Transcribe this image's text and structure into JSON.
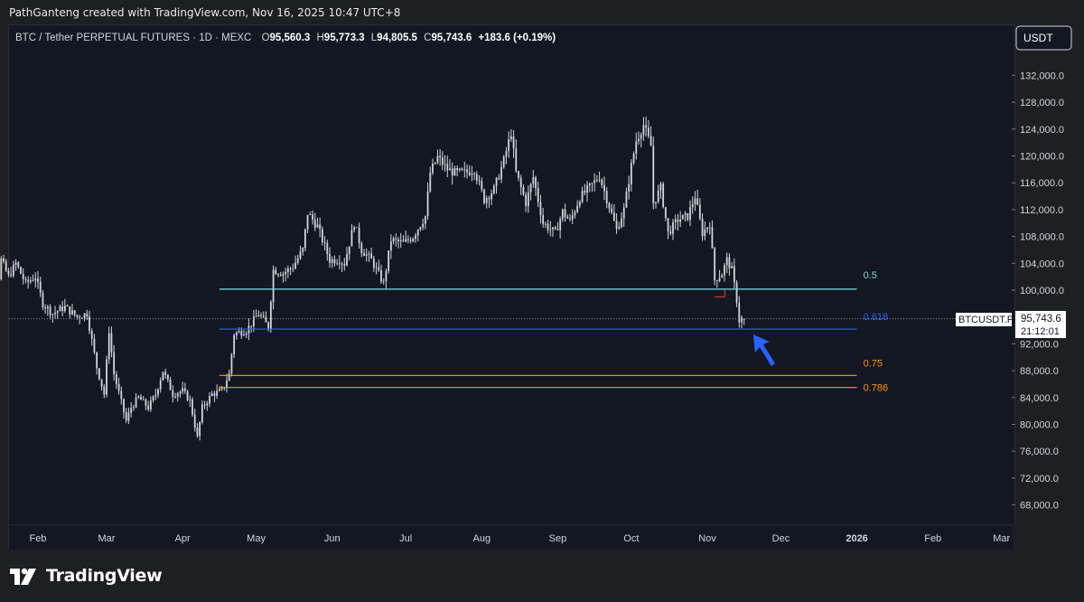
{
  "attribution": "PathGanteng created with TradingView.com, Nov 16, 2025 10:47 UTC+8",
  "brand": {
    "name": "TradingView",
    "logo_icon": "tradingview-logo-icon"
  },
  "colors": {
    "background": "#131722",
    "candle": "#d1d4dc",
    "fib_05": "#7fdbe6",
    "fib_0618": "#2962ff",
    "fib_075": "#ff9800",
    "fib_0786": "#ff9800",
    "arrow": "#2962ff",
    "marker": "#f23645"
  },
  "chart_data": {
    "type": "candlestick",
    "symbol_line": {
      "symbol": "BTC / Tether PERPETUAL FUTURES · 1D · MEXC",
      "open_label": "O",
      "open": "95,560.3",
      "high_label": "H",
      "high": "95,773.3",
      "low_label": "L",
      "low": "94,805.5",
      "close_label": "C",
      "close": "95,743.6",
      "change": "+183.6 (+0.19%)"
    },
    "currency": "USDT",
    "price_axis_ticks": [
      "132,000.0",
      "128,000.0",
      "124,000.0",
      "120,000.0",
      "116,000.0",
      "112,000.0",
      "108,000.0",
      "104,000.0",
      "100,000.0",
      "92,000.0",
      "88,000.0",
      "84,000.0",
      "80,000.0",
      "76,000.0",
      "72,000.0",
      "68,000.0"
    ],
    "price_tick_values": [
      132000,
      128000,
      124000,
      120000,
      116000,
      112000,
      108000,
      104000,
      100000,
      92000,
      88000,
      84000,
      80000,
      76000,
      72000,
      68000
    ],
    "time_axis_ticks": [
      "Feb",
      "Mar",
      "Apr",
      "May",
      "Jun",
      "Jul",
      "Aug",
      "Sep",
      "Oct",
      "Nov",
      "Dec",
      "2026",
      "Feb",
      "Mar"
    ],
    "last_price": {
      "symbol": "BTCUSDT.P",
      "value": "95,743.6",
      "countdown": "21:12:01",
      "price": 95743.6
    },
    "fib_levels": [
      {
        "label": "0.5",
        "price": 100150
      },
      {
        "label": "0.618",
        "price": 94200
      },
      {
        "label": "0.75",
        "price": 87300
      },
      {
        "label": "0.786",
        "price": 85500
      }
    ],
    "fib_start": "2025-04-16",
    "fib_end": "2026-01-01",
    "marker": {
      "date_from": "2025-11-04",
      "date_to": "2025-11-07",
      "price": 99000
    },
    "arrow": {
      "date": "2025-11-19",
      "price": 93000
    },
    "series": [
      {
        "d": "2025-01-07",
        "c": 102000
      },
      {
        "d": "2025-01-10",
        "c": 95000
      },
      {
        "d": "2025-01-13",
        "c": 94500
      },
      {
        "d": "2025-01-17",
        "c": 104500
      },
      {
        "d": "2025-01-20",
        "c": 102000
      },
      {
        "d": "2025-01-23",
        "c": 104000
      },
      {
        "d": "2025-01-27",
        "c": 101000
      },
      {
        "d": "2025-01-31",
        "c": 102000
      },
      {
        "d": "2025-02-03",
        "c": 98000
      },
      {
        "d": "2025-02-07",
        "c": 96500
      },
      {
        "d": "2025-02-12",
        "c": 97500
      },
      {
        "d": "2025-02-17",
        "c": 96000
      },
      {
        "d": "2025-02-21",
        "c": 96500
      },
      {
        "d": "2025-02-25",
        "c": 88500
      },
      {
        "d": "2025-02-28",
        "c": 84500
      },
      {
        "d": "2025-03-02",
        "c": 94000
      },
      {
        "d": "2025-03-04",
        "c": 87500
      },
      {
        "d": "2025-03-09",
        "c": 80500
      },
      {
        "d": "2025-03-11",
        "c": 82500
      },
      {
        "d": "2025-03-14",
        "c": 84000
      },
      {
        "d": "2025-03-18",
        "c": 82500
      },
      {
        "d": "2025-03-21",
        "c": 84500
      },
      {
        "d": "2025-03-24",
        "c": 88000
      },
      {
        "d": "2025-03-28",
        "c": 84500
      },
      {
        "d": "2025-04-01",
        "c": 85000
      },
      {
        "d": "2025-04-04",
        "c": 83500
      },
      {
        "d": "2025-04-07",
        "c": 78000
      },
      {
        "d": "2025-04-09",
        "c": 82500
      },
      {
        "d": "2025-04-13",
        "c": 84500
      },
      {
        "d": "2025-04-17",
        "c": 85000
      },
      {
        "d": "2025-04-20",
        "c": 87500
      },
      {
        "d": "2025-04-22",
        "c": 93500
      },
      {
        "d": "2025-04-27",
        "c": 94000
      },
      {
        "d": "2025-05-02",
        "c": 96500
      },
      {
        "d": "2025-05-06",
        "c": 94500
      },
      {
        "d": "2025-05-08",
        "c": 103000
      },
      {
        "d": "2025-05-12",
        "c": 102500
      },
      {
        "d": "2025-05-16",
        "c": 103500
      },
      {
        "d": "2025-05-20",
        "c": 106000
      },
      {
        "d": "2025-05-22",
        "c": 111500
      },
      {
        "d": "2025-05-26",
        "c": 109500
      },
      {
        "d": "2025-05-31",
        "c": 104500
      },
      {
        "d": "2025-06-04",
        "c": 104500
      },
      {
        "d": "2025-06-06",
        "c": 104000
      },
      {
        "d": "2025-06-10",
        "c": 110000
      },
      {
        "d": "2025-06-13",
        "c": 106000
      },
      {
        "d": "2025-06-17",
        "c": 104500
      },
      {
        "d": "2025-06-22",
        "c": 101000
      },
      {
        "d": "2025-06-25",
        "c": 107500
      },
      {
        "d": "2025-06-30",
        "c": 107000
      },
      {
        "d": "2025-07-04",
        "c": 108000
      },
      {
        "d": "2025-07-09",
        "c": 111000
      },
      {
        "d": "2025-07-11",
        "c": 117500
      },
      {
        "d": "2025-07-14",
        "c": 119800
      },
      {
        "d": "2025-07-18",
        "c": 118000
      },
      {
        "d": "2025-07-21",
        "c": 117500
      },
      {
        "d": "2025-07-25",
        "c": 117500
      },
      {
        "d": "2025-07-29",
        "c": 118000
      },
      {
        "d": "2025-08-02",
        "c": 113500
      },
      {
        "d": "2025-08-06",
        "c": 115000
      },
      {
        "d": "2025-08-10",
        "c": 119300
      },
      {
        "d": "2025-08-13",
        "c": 123500
      },
      {
        "d": "2025-08-15",
        "c": 117500
      },
      {
        "d": "2025-08-19",
        "c": 113000
      },
      {
        "d": "2025-08-22",
        "c": 116800
      },
      {
        "d": "2025-08-26",
        "c": 110000
      },
      {
        "d": "2025-08-31",
        "c": 108500
      },
      {
        "d": "2025-09-03",
        "c": 111700
      },
      {
        "d": "2025-09-06",
        "c": 110200
      },
      {
        "d": "2025-09-10",
        "c": 113800
      },
      {
        "d": "2025-09-14",
        "c": 115300
      },
      {
        "d": "2025-09-18",
        "c": 117000
      },
      {
        "d": "2025-09-22",
        "c": 112500
      },
      {
        "d": "2025-09-25",
        "c": 109000
      },
      {
        "d": "2025-09-28",
        "c": 112000
      },
      {
        "d": "2025-10-01",
        "c": 118500
      },
      {
        "d": "2025-10-03",
        "c": 122300
      },
      {
        "d": "2025-10-06",
        "c": 124600
      },
      {
        "d": "2025-10-09",
        "c": 121500
      },
      {
        "d": "2025-10-10",
        "c": 113000
      },
      {
        "d": "2025-10-13",
        "c": 115200
      },
      {
        "d": "2025-10-16",
        "c": 108500
      },
      {
        "d": "2025-10-20",
        "c": 110500
      },
      {
        "d": "2025-10-24",
        "c": 111000
      },
      {
        "d": "2025-10-27",
        "c": 114000
      },
      {
        "d": "2025-10-30",
        "c": 108500
      },
      {
        "d": "2025-11-02",
        "c": 110000
      },
      {
        "d": "2025-11-04",
        "c": 101500
      },
      {
        "d": "2025-11-07",
        "c": 102500
      },
      {
        "d": "2025-11-09",
        "c": 104500
      },
      {
        "d": "2025-11-11",
        "c": 103000
      },
      {
        "d": "2025-11-13",
        "c": 98500
      },
      {
        "d": "2025-11-14",
        "c": 95500
      },
      {
        "d": "2025-11-15",
        "c": 95800
      },
      {
        "d": "2025-11-16",
        "c": 95743.6
      }
    ]
  }
}
